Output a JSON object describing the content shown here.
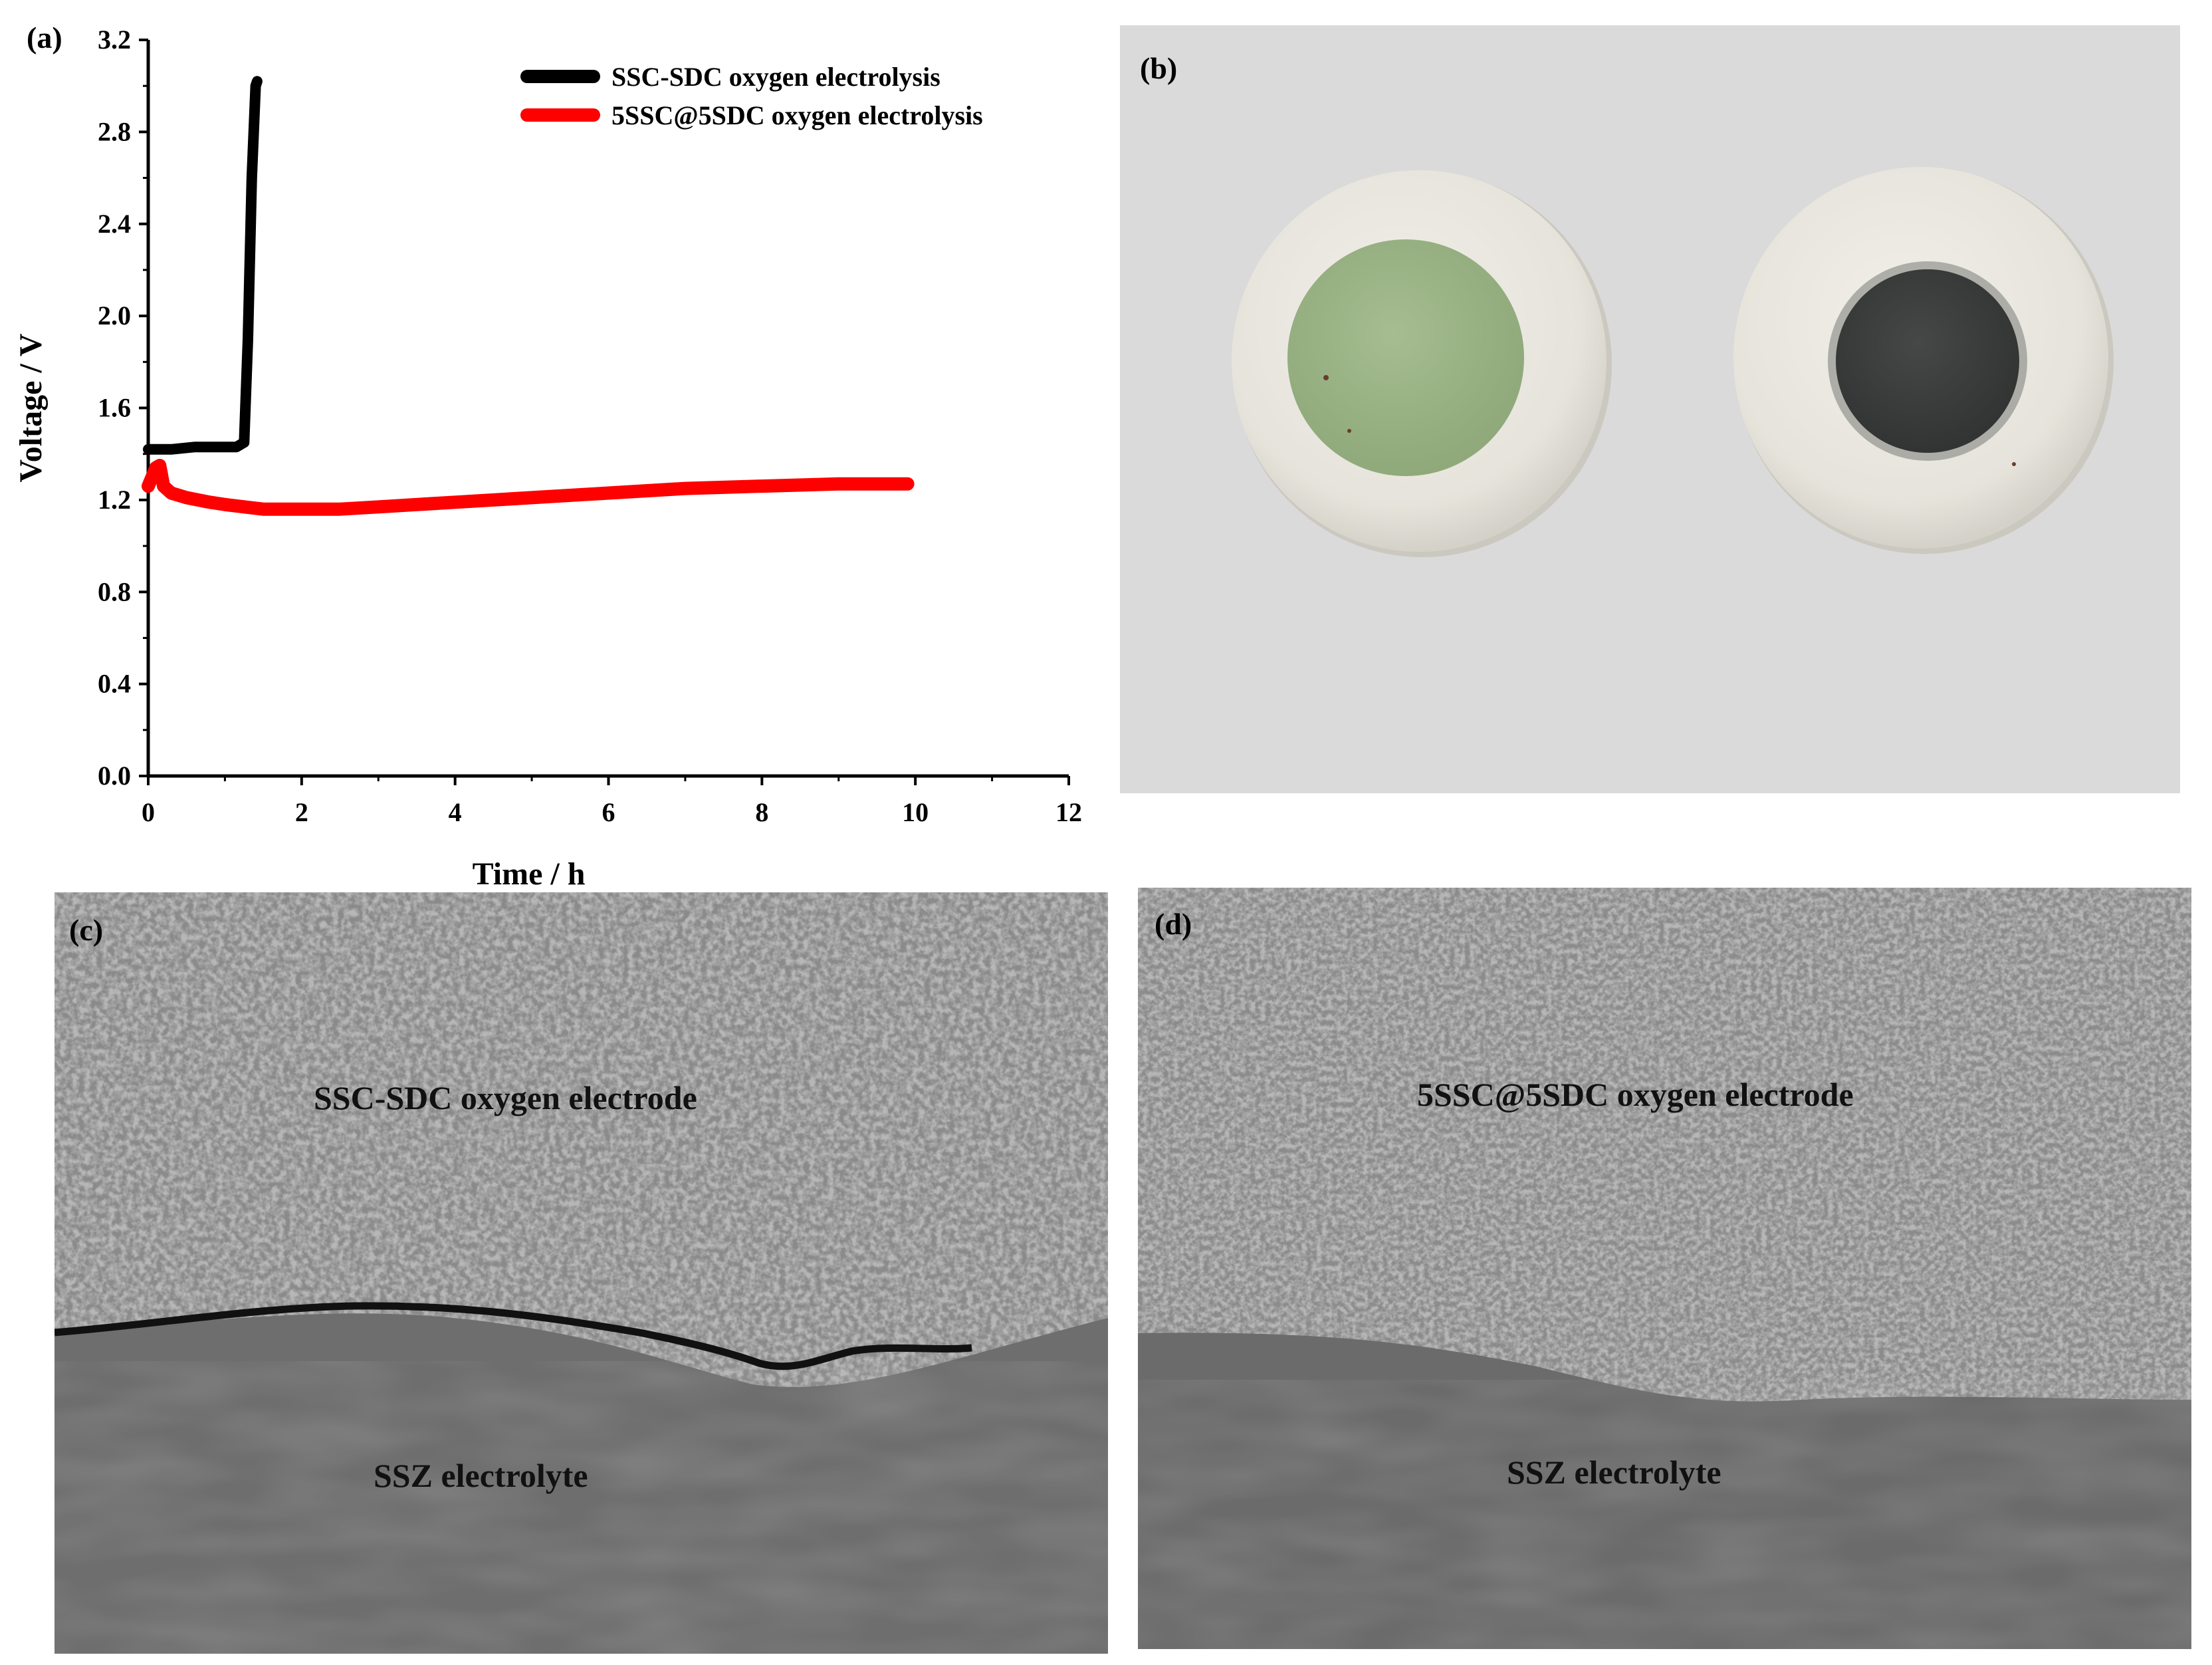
{
  "panels": {
    "a": {
      "label": "(a)"
    },
    "b": {
      "label": "(b)"
    },
    "c": {
      "label": "(c)",
      "electrode_text": "SSC-SDC oxygen electrode",
      "electrolyte_text": "SSZ electrolyte"
    },
    "d": {
      "label": "(d)",
      "electrode_text": "5SSC@5SDC oxygen electrode",
      "electrolyte_text": "SSZ electrolyte"
    }
  },
  "chart_data": {
    "type": "line",
    "xlabel": "Time / h",
    "ylabel": "Voltage / V",
    "xlim": [
      0,
      12
    ],
    "ylim": [
      0,
      3.2
    ],
    "x_ticks": [
      "0",
      "2",
      "4",
      "6",
      "8",
      "10",
      "12"
    ],
    "y_ticks": [
      "0.0",
      "0.4",
      "0.8",
      "1.2",
      "1.6",
      "2.0",
      "2.4",
      "2.8",
      "3.2"
    ],
    "legend_position": "top-right",
    "grid": false,
    "series": [
      {
        "name": "SSC-SDC oxygen electrolysis",
        "color": "#000000",
        "x": [
          0,
          0.3,
          0.6,
          0.9,
          1.15,
          1.25,
          1.3,
          1.35,
          1.4,
          1.42
        ],
        "y": [
          1.42,
          1.42,
          1.43,
          1.43,
          1.43,
          1.45,
          1.9,
          2.6,
          3.0,
          3.02
        ]
      },
      {
        "name": "5SSC@5SDC oxygen electrolysis",
        "color": "#ff0000",
        "x": [
          0,
          0.05,
          0.1,
          0.15,
          0.2,
          0.3,
          0.5,
          0.8,
          1.0,
          1.5,
          2.0,
          2.5,
          3.0,
          4.0,
          5.0,
          6.0,
          7.0,
          8.0,
          9.0,
          9.9
        ],
        "y": [
          1.26,
          1.3,
          1.34,
          1.35,
          1.26,
          1.23,
          1.21,
          1.19,
          1.18,
          1.16,
          1.16,
          1.16,
          1.17,
          1.19,
          1.21,
          1.23,
          1.25,
          1.26,
          1.27,
          1.27
        ]
      }
    ]
  },
  "colors": {
    "panel_b_background": "#dadada",
    "pellet_edge": "#ece9e2",
    "green_electrode": "#9bb386",
    "black_electrode": "#3c3f3e",
    "sem_electrolyte": "#6a6a6a"
  }
}
